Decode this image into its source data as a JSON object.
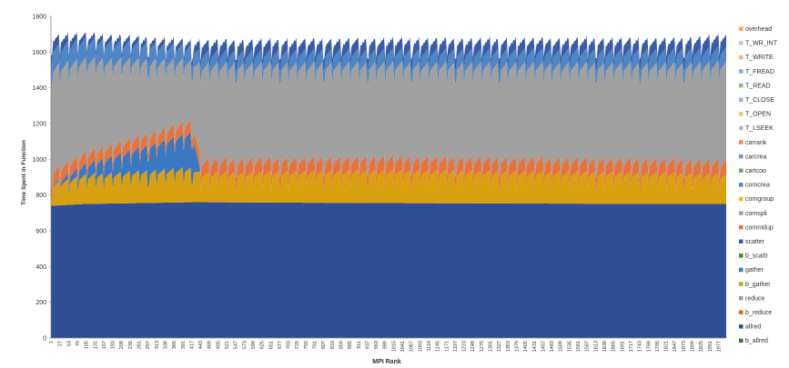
{
  "chart_data": {
    "type": "area",
    "stacked": true,
    "xlabel": "MPI Rank",
    "ylabel": "Time Spent in Function",
    "ylim": [
      0,
      1800
    ],
    "yticks": [
      0,
      200,
      400,
      600,
      800,
      1000,
      1200,
      1400,
      1600,
      1800
    ],
    "x_range": [
      1,
      2000
    ],
    "x_tick_labels": [
      "1",
      "27",
      "53",
      "79",
      "105",
      "131",
      "157",
      "183",
      "209",
      "235",
      "261",
      "287",
      "313",
      "339",
      "365",
      "391",
      "417",
      "443",
      "469",
      "495",
      "521",
      "547",
      "573",
      "599",
      "625",
      "651",
      "677",
      "703",
      "729",
      "755",
      "781",
      "807",
      "833",
      "859",
      "885",
      "911",
      "937",
      "963",
      "989",
      "1015",
      "1041",
      "1067",
      "1093",
      "1119",
      "1145",
      "1171",
      "1197",
      "1223",
      "1249",
      "1275",
      "1301",
      "1327",
      "1353",
      "1379",
      "1405",
      "1431",
      "1457",
      "1483",
      "1509",
      "1535",
      "1561",
      "1587",
      "1613",
      "1639",
      "1665",
      "1691",
      "1717",
      "1743",
      "1769",
      "1795",
      "1821",
      "1847",
      "1873",
      "1899",
      "1925",
      "1951",
      "1977"
    ],
    "grid": false,
    "legend_position": "right",
    "legend": [
      {
        "name": "overhead",
        "color": "#f4a460"
      },
      {
        "name": "T_WR_INT",
        "color": "#c9c9c9"
      },
      {
        "name": "T_WRITE",
        "color": "#f3b486"
      },
      {
        "name": "T_FREAD",
        "color": "#8aa8d6"
      },
      {
        "name": "T_READ",
        "color": "#8cbf6a"
      },
      {
        "name": "T_CLOSE",
        "color": "#9ab3dc"
      },
      {
        "name": "T_OPEN",
        "color": "#f6c66b"
      },
      {
        "name": "T_LSEEK",
        "color": "#a9b9cf"
      },
      {
        "name": "carrank",
        "color": "#f08b5a"
      },
      {
        "name": "carcrea",
        "color": "#6b9ad2"
      },
      {
        "name": "cartcoo",
        "color": "#6aaa4a"
      },
      {
        "name": "comcrea",
        "color": "#4f86c6"
      },
      {
        "name": "comgroup",
        "color": "#f2b92b"
      },
      {
        "name": "comspli",
        "color": "#a0a0a0"
      },
      {
        "name": "commdup",
        "color": "#e9733a"
      },
      {
        "name": "scatter",
        "color": "#3a5ba8"
      },
      {
        "name": "b_scattr",
        "color": "#4a8a2a"
      },
      {
        "name": "gather",
        "color": "#3b78c3"
      },
      {
        "name": "b_gather",
        "color": "#d8a00f"
      },
      {
        "name": "reduce",
        "color": "#9a9a9a"
      },
      {
        "name": "b_reduce",
        "color": "#e0631f"
      },
      {
        "name": "allred",
        "color": "#2e4f95"
      },
      {
        "name": "b_allred",
        "color": "#3f7a1f"
      }
    ],
    "series": [
      {
        "name": "allred",
        "color": "#2e4f95",
        "values": [
          740,
          750,
          760,
          760,
          755,
          750,
          750
        ]
      },
      {
        "name": "b_gather",
        "color": "#d8a00f",
        "values": [
          90,
          130,
          160,
          130,
          150,
          140,
          130
        ]
      },
      {
        "name": "gather",
        "color": "#3b78c3",
        "values": [
          0,
          60,
          200,
          0,
          0,
          0,
          0
        ]
      },
      {
        "name": "commdup",
        "color": "#e9733a",
        "values": [
          60,
          50,
          50,
          60,
          60,
          60,
          60
        ]
      },
      {
        "name": "comspli",
        "color": "#a0a0a0",
        "values": [
          580,
          520,
          330,
          530,
          520,
          530,
          550
        ]
      },
      {
        "name": "comcrea",
        "color": "#4f86c6",
        "values": [
          110,
          110,
          80,
          70,
          75,
          80,
          80
        ]
      },
      {
        "name": "scatter",
        "color": "#3a5ba8",
        "values": [
          60,
          30,
          30,
          60,
          60,
          60,
          70
        ]
      }
    ],
    "series_x": [
      1,
      100,
      420,
      445,
      1000,
      1850,
      2000
    ]
  }
}
